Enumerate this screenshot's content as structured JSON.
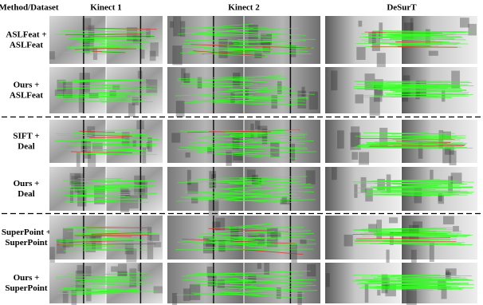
{
  "header": {
    "columns": [
      "Method/Dataset",
      "Kinect 1",
      "Kinect 2",
      "DeSurT"
    ]
  },
  "rows": [
    {
      "label": [
        "ASLFeat +",
        "ASLFeat"
      ]
    },
    {
      "label": [
        "Ours +",
        "ASLFeat"
      ]
    },
    {
      "label": [
        "SIFT +",
        "Deal"
      ]
    },
    {
      "label": [
        "Ours +",
        "Deal"
      ]
    },
    {
      "label": [
        "SuperPoint +",
        "SuperPoint"
      ]
    },
    {
      "label": [
        "Ours +",
        "SuperPoint"
      ]
    }
  ]
}
